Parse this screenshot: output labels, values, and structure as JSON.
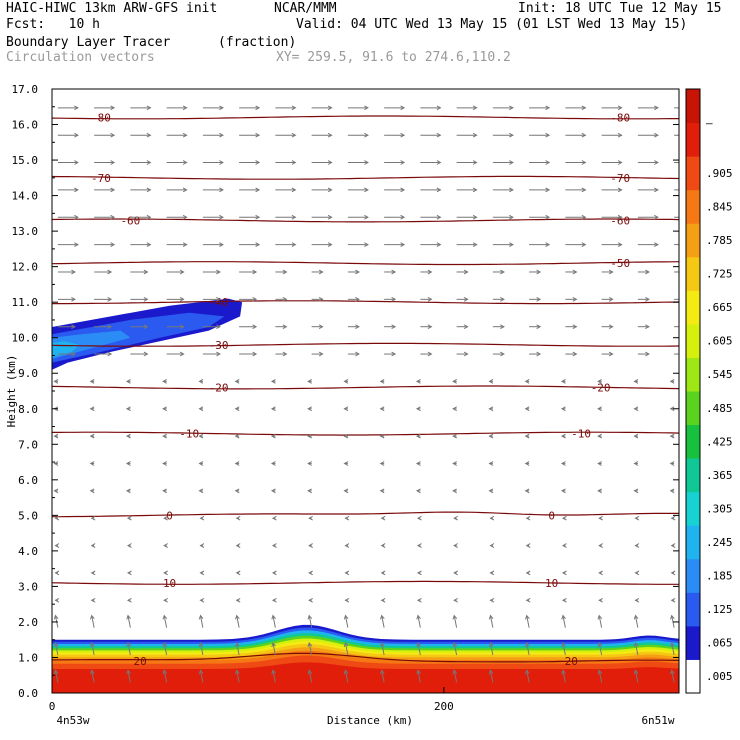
{
  "header": {
    "model": "HAIC-HIWC 13km ARW-GFS init",
    "org": "NCAR/MMM",
    "init": "Init: 18 UTC Tue 12 May 15",
    "fcst": "Fcst:   10 h",
    "valid": "Valid: 04 UTC Wed 13 May 15 (01 LST Wed 13 May 15)",
    "field": "Boundary Layer Tracer",
    "units": "(fraction)",
    "vectors": "Circulation vectors",
    "xy": "XY= 259.5, 91.6 to 274.6,110.2"
  },
  "chart_data": {
    "type": "heatmap",
    "ylabel": "Height (km)",
    "xlabel": "Distance (km)",
    "x_left_label": "4n53w",
    "x_right_label": "6n51w",
    "x_ticks": [
      {
        "value": 0,
        "label": "0"
      },
      {
        "value": 200,
        "label": "200"
      }
    ],
    "xlim": [
      0,
      320
    ],
    "ylim": [
      0,
      17
    ],
    "y_ticks": [
      "0.0",
      "1.0",
      "2.0",
      "3.0",
      "4.0",
      "5.0",
      "6.0",
      "7.0",
      "8.0",
      "9.0",
      "10.0",
      "11.0",
      "12.0",
      "13.0",
      "14.0",
      "15.0",
      "16.0",
      "17.0"
    ],
    "colorbar": {
      "labels": [
        ".005",
        ".065",
        ".125",
        ".185",
        ".245",
        ".305",
        ".365",
        ".425",
        ".485",
        ".545",
        ".605",
        ".665",
        ".725",
        ".785",
        ".845",
        ".905",
        "–"
      ],
      "colors": [
        "#ffffff",
        "#1a1acc",
        "#2a5af0",
        "#2b8cf5",
        "#1fb4f0",
        "#16d2d2",
        "#10c896",
        "#18c040",
        "#5ad21e",
        "#9ee614",
        "#d6f00e",
        "#f5eb14",
        "#f5c814",
        "#f5a014",
        "#f57814",
        "#f04a14",
        "#e01e0a",
        "#c81405"
      ]
    },
    "temperature_contours": [
      {
        "value": "-80",
        "height_km": 16.2,
        "label_x_km": [
          25,
          290
        ]
      },
      {
        "value": "-70",
        "height_km": 14.5,
        "label_x_km": [
          25,
          290
        ]
      },
      {
        "value": "-60",
        "height_km": 13.3,
        "label_x_km": [
          40,
          290
        ]
      },
      {
        "value": "-50",
        "height_km": 12.1,
        "label_x_km": [
          290
        ]
      },
      {
        "value": "-40",
        "height_km": 11.0,
        "label_x_km": [
          85
        ]
      },
      {
        "value": "-30",
        "height_km": 9.8,
        "label_x_km": [
          85
        ]
      },
      {
        "value": "-20",
        "height_km": 8.6,
        "label_x_km": [
          85,
          280
        ]
      },
      {
        "value": "-10",
        "height_km": 7.3,
        "label_x_km": [
          70,
          270
        ]
      },
      {
        "value": "0",
        "height_km": 5.0,
        "label_x_km": [
          60,
          255
        ]
      },
      {
        "value": "10",
        "height_km": 3.1,
        "label_x_km": [
          60,
          255
        ]
      },
      {
        "value": "20",
        "height_km": 0.9,
        "label_x_km": [
          45,
          265
        ]
      }
    ],
    "tracer_regions": [
      {
        "name": "boundary layer",
        "height_range_km": [
          0,
          1.5
        ],
        "peak_height_km": 1.9,
        "peak_x_km": 130,
        "max_fraction": 0.95
      },
      {
        "name": "upper plume",
        "height_range_km": [
          9.0,
          11.0
        ],
        "x_range_km": [
          0,
          95
        ],
        "max_fraction": 0.3
      }
    ],
    "vectors": {
      "upper_levels": "westerly, strong above 12 km",
      "lower_levels": "weak, easterly",
      "near_surface": "strong vertical motion in boundary layer"
    }
  }
}
